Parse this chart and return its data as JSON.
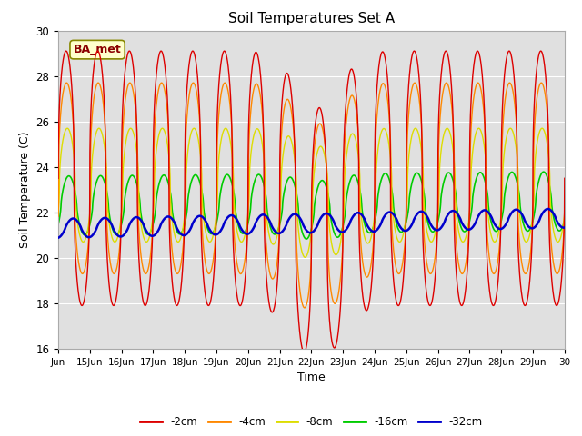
{
  "title": "Soil Temperatures Set A",
  "xlabel": "Time",
  "ylabel": "Soil Temperature (C)",
  "ylim": [
    16,
    30
  ],
  "xlim_days": [
    14,
    30
  ],
  "annotation": "BA_met",
  "legend": [
    "-2cm",
    "-4cm",
    "-8cm",
    "-16cm",
    "-32cm"
  ],
  "colors": [
    "#dd0000",
    "#ff8800",
    "#dddd00",
    "#00cc00",
    "#0000cc"
  ],
  "background_color": "#e0e0e0",
  "grid_color": "#ffffff",
  "fig_facecolor": "#ffffff",
  "tick_labels": [
    "Jun",
    "15Jun",
    "16Jun",
    "17Jun",
    "18Jun",
    "19Jun",
    "20Jun",
    "21Jun",
    "22Jun",
    "23Jun",
    "24Jun",
    "25Jun",
    "26Jun",
    "27Jun",
    "28Jun",
    "29Jun",
    "30"
  ],
  "tick_positions": [
    14,
    15,
    16,
    17,
    18,
    19,
    20,
    21,
    22,
    23,
    24,
    25,
    26,
    27,
    28,
    29,
    30
  ],
  "mean_2cm": 23.5,
  "amp_2cm": 5.6,
  "mean_4cm": 23.5,
  "amp_4cm": 4.2,
  "mean_8cm": 23.2,
  "amp_8cm": 2.5,
  "mean_16cm": 22.3,
  "amp_16cm": 1.3,
  "mean_32cm": 21.3,
  "amp_32cm": 0.42,
  "phase_2cm": 0.0,
  "phase_4cm": 0.1,
  "phase_8cm": 0.25,
  "phase_16cm": 0.55,
  "phase_32cm": 1.4
}
